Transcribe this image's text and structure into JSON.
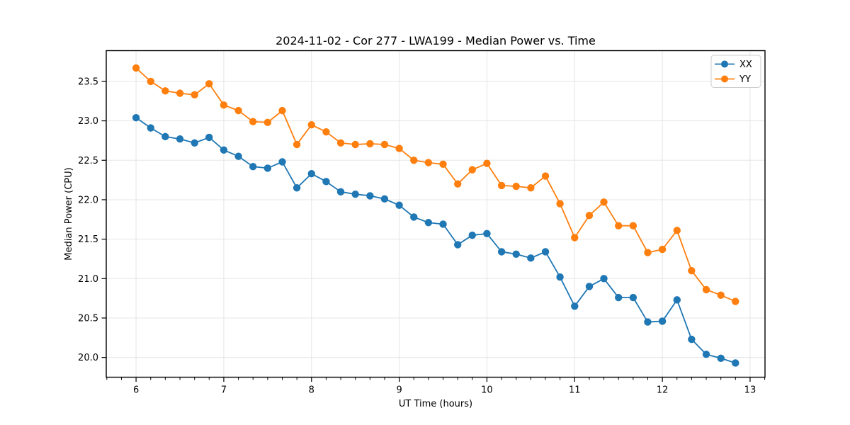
{
  "chart_data": {
    "type": "line",
    "title": "2024-11-02 - Cor 277 - LWA199 - Median Power vs. Time",
    "xlabel": "UT Time (hours)",
    "ylabel": "Median Power (CPU)",
    "x": [
      6.0,
      6.167,
      6.333,
      6.5,
      6.667,
      6.833,
      7.0,
      7.167,
      7.333,
      7.5,
      7.667,
      7.833,
      8.0,
      8.167,
      8.333,
      8.5,
      8.667,
      8.833,
      9.0,
      9.167,
      9.333,
      9.5,
      9.667,
      9.833,
      10.0,
      10.167,
      10.333,
      10.5,
      10.667,
      10.833,
      11.0,
      11.167,
      11.333,
      11.5,
      11.667,
      11.833,
      12.0,
      12.167,
      12.333,
      12.5,
      12.667,
      12.833
    ],
    "series": [
      {
        "name": "XX",
        "color": "#1f77b4",
        "values": [
          23.04,
          22.91,
          22.8,
          22.77,
          22.72,
          22.79,
          22.63,
          22.55,
          22.42,
          22.4,
          22.48,
          22.15,
          22.33,
          22.23,
          22.1,
          22.07,
          22.05,
          22.01,
          21.93,
          21.78,
          21.71,
          21.69,
          21.43,
          21.55,
          21.57,
          21.34,
          21.31,
          21.26,
          21.34,
          21.02,
          20.65,
          20.9,
          21.0,
          20.76,
          20.76,
          20.45,
          20.46,
          20.73,
          20.23,
          20.04,
          19.99,
          19.93
        ]
      },
      {
        "name": "YY",
        "color": "#ff7f0e",
        "values": [
          23.67,
          23.5,
          23.38,
          23.35,
          23.33,
          23.47,
          23.2,
          23.13,
          22.99,
          22.98,
          23.13,
          22.7,
          22.95,
          22.86,
          22.72,
          22.7,
          22.71,
          22.7,
          22.65,
          22.5,
          22.47,
          22.45,
          22.2,
          22.38,
          22.46,
          22.18,
          22.17,
          22.15,
          22.3,
          21.95,
          21.52,
          21.8,
          21.97,
          21.67,
          21.67,
          21.33,
          21.37,
          21.61,
          21.1,
          20.86,
          20.79,
          20.71
        ]
      }
    ],
    "xlim": [
      5.66,
      13.17
    ],
    "ylim": [
      19.75,
      23.89
    ],
    "xticks": [
      6,
      7,
      8,
      9,
      10,
      11,
      12,
      13
    ],
    "yticks": [
      20.0,
      20.5,
      21.0,
      21.5,
      22.0,
      22.5,
      23.0,
      23.5
    ],
    "minor_xticks_per_hour": 6,
    "grid": true,
    "grid_color": "#e5e5e5",
    "background": "#ffffff",
    "legend": {
      "position": "upper right",
      "labels": [
        "XX",
        "YY"
      ]
    }
  }
}
